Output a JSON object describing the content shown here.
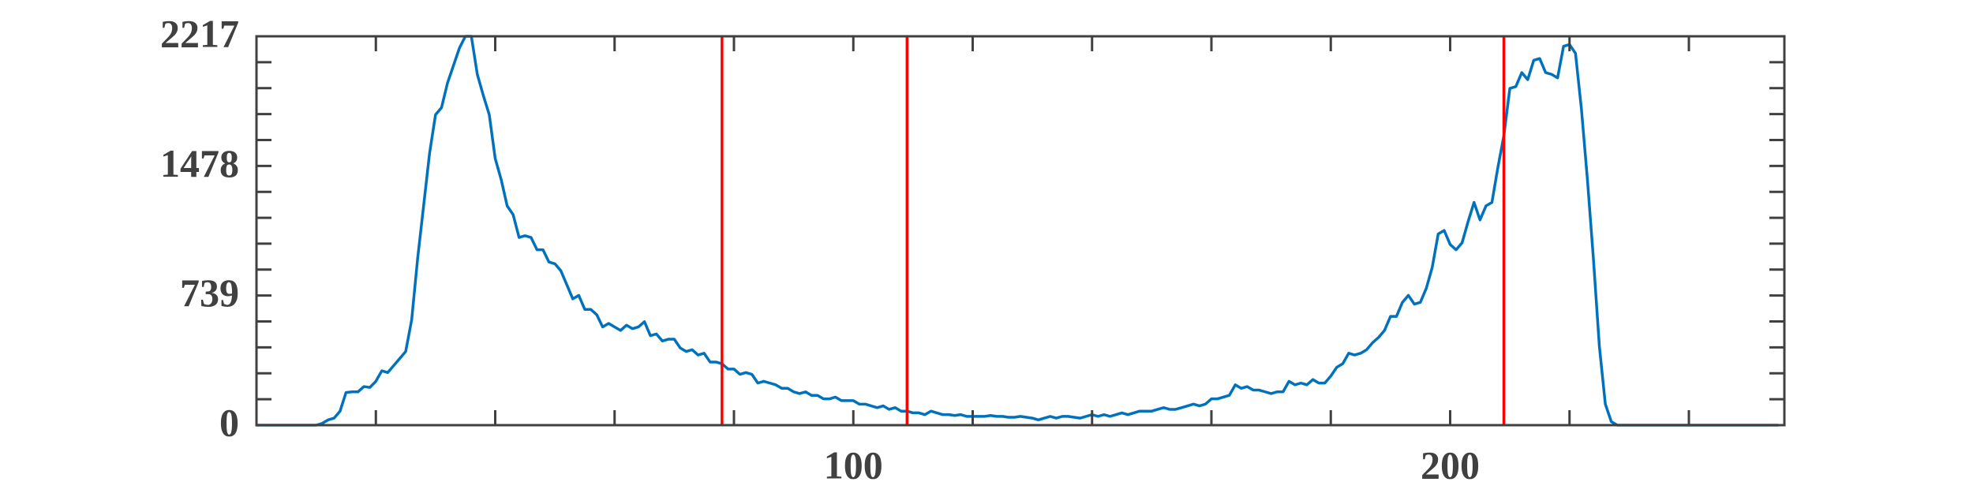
{
  "chart_data": {
    "type": "line",
    "x": [
      0,
      1,
      2,
      3,
      4,
      5,
      6,
      7,
      8,
      9,
      10,
      11,
      12,
      13,
      14,
      15,
      16,
      17,
      18,
      19,
      20,
      21,
      22,
      23,
      24,
      25,
      26,
      27,
      28,
      29,
      30,
      31,
      32,
      33,
      34,
      35,
      36,
      37,
      38,
      39,
      40,
      41,
      42,
      43,
      44,
      45,
      46,
      47,
      48,
      49,
      50,
      51,
      52,
      53,
      54,
      55,
      56,
      57,
      58,
      59,
      60,
      61,
      62,
      63,
      64,
      65,
      66,
      67,
      68,
      69,
      70,
      71,
      72,
      73,
      74,
      75,
      76,
      77,
      78,
      79,
      80,
      81,
      82,
      83,
      84,
      85,
      86,
      87,
      88,
      89,
      90,
      91,
      92,
      93,
      94,
      95,
      96,
      97,
      98,
      99,
      100,
      101,
      102,
      103,
      104,
      105,
      106,
      107,
      108,
      109,
      110,
      111,
      112,
      113,
      114,
      115,
      116,
      117,
      118,
      119,
      120,
      121,
      122,
      123,
      124,
      125,
      126,
      127,
      128,
      129,
      130,
      131,
      132,
      133,
      134,
      135,
      136,
      137,
      138,
      139,
      140,
      141,
      142,
      143,
      144,
      145,
      146,
      147,
      148,
      149,
      150,
      151,
      152,
      153,
      154,
      155,
      156,
      157,
      158,
      159,
      160,
      161,
      162,
      163,
      164,
      165,
      166,
      167,
      168,
      169,
      170,
      171,
      172,
      173,
      174,
      175,
      176,
      177,
      178,
      179,
      180,
      181,
      182,
      183,
      184,
      185,
      186,
      187,
      188,
      189,
      190,
      191,
      192,
      193,
      194,
      195,
      196,
      197,
      198,
      199,
      200,
      201,
      202,
      203,
      204,
      205,
      206,
      207,
      208,
      209,
      210,
      211,
      212,
      213,
      214,
      215,
      216,
      217,
      218,
      219,
      220,
      221,
      222,
      223,
      224,
      225,
      226,
      227,
      228,
      229,
      230,
      231,
      232,
      233,
      234,
      235,
      236,
      237,
      238,
      239,
      240,
      241,
      242,
      243,
      244,
      245,
      246,
      247,
      248,
      249,
      250,
      251,
      252,
      253,
      254,
      255
    ],
    "series": [
      {
        "color": "#0072bd",
        "values": [
          0,
          0,
          0,
          0,
          0,
          0,
          0,
          0,
          0,
          0,
          0,
          10,
          30,
          40,
          80,
          186,
          190,
          190,
          220,
          215,
          250,
          310,
          300,
          340,
          380,
          420,
          600,
          950,
          1250,
          1550,
          1770,
          1810,
          1950,
          2050,
          2150,
          2217,
          2217,
          2000,
          1880,
          1770,
          1520,
          1400,
          1250,
          1200,
          1070,
          1080,
          1070,
          1000,
          1000,
          930,
          920,
          880,
          800,
          720,
          740,
          660,
          660,
          630,
          560,
          580,
          560,
          540,
          570,
          550,
          560,
          590,
          510,
          520,
          480,
          490,
          490,
          440,
          420,
          430,
          400,
          410,
          360,
          360,
          350,
          320,
          320,
          290,
          300,
          290,
          240,
          250,
          240,
          230,
          210,
          210,
          190,
          180,
          190,
          170,
          170,
          150,
          150,
          160,
          140,
          140,
          140,
          120,
          120,
          110,
          100,
          110,
          90,
          100,
          80,
          80,
          70,
          70,
          60,
          80,
          70,
          60,
          60,
          55,
          60,
          50,
          50,
          50,
          50,
          55,
          50,
          50,
          45,
          45,
          50,
          45,
          40,
          30,
          40,
          50,
          40,
          50,
          50,
          45,
          40,
          50,
          60,
          50,
          60,
          50,
          60,
          70,
          60,
          70,
          80,
          80,
          80,
          90,
          100,
          90,
          90,
          100,
          110,
          120,
          110,
          120,
          150,
          150,
          160,
          170,
          230,
          210,
          220,
          200,
          200,
          190,
          180,
          190,
          190,
          250,
          230,
          240,
          230,
          260,
          240,
          240,
          280,
          330,
          350,
          410,
          400,
          410,
          430,
          470,
          500,
          540,
          620,
          620,
          700,
          740,
          690,
          700,
          780,
          900,
          1090,
          1110,
          1030,
          1000,
          1040,
          1160,
          1270,
          1170,
          1250,
          1270,
          1470,
          1650,
          1920,
          1930,
          2010,
          1970,
          2080,
          2090,
          2010,
          2000,
          1980,
          2160,
          2170,
          2120,
          1800,
          1400,
          950,
          450,
          120,
          20,
          0,
          0,
          0,
          0,
          0,
          0,
          0,
          0,
          0,
          0,
          0,
          0,
          0,
          0,
          0,
          0,
          0,
          0,
          0,
          0,
          0,
          0,
          0,
          0,
          0,
          0,
          0,
          0
        ]
      }
    ],
    "xlim": [
      0,
      256
    ],
    "xticks": [
      100,
      200
    ],
    "xminorticks": [
      20,
      40,
      60,
      80,
      120,
      140,
      160,
      180,
      220,
      240
    ],
    "ylim": [
      0,
      2217
    ],
    "yticks": [
      0,
      739,
      1478,
      2217
    ],
    "yminorticks": [
      147.8,
      295.6,
      443.4,
      591.2,
      886.8,
      1034.6,
      1182.4,
      1330.2,
      1625.8,
      1773.6,
      1921.4,
      2069.2
    ],
    "vlines": [
      78,
      109,
      209
    ],
    "vline_color": "#ff0000"
  }
}
